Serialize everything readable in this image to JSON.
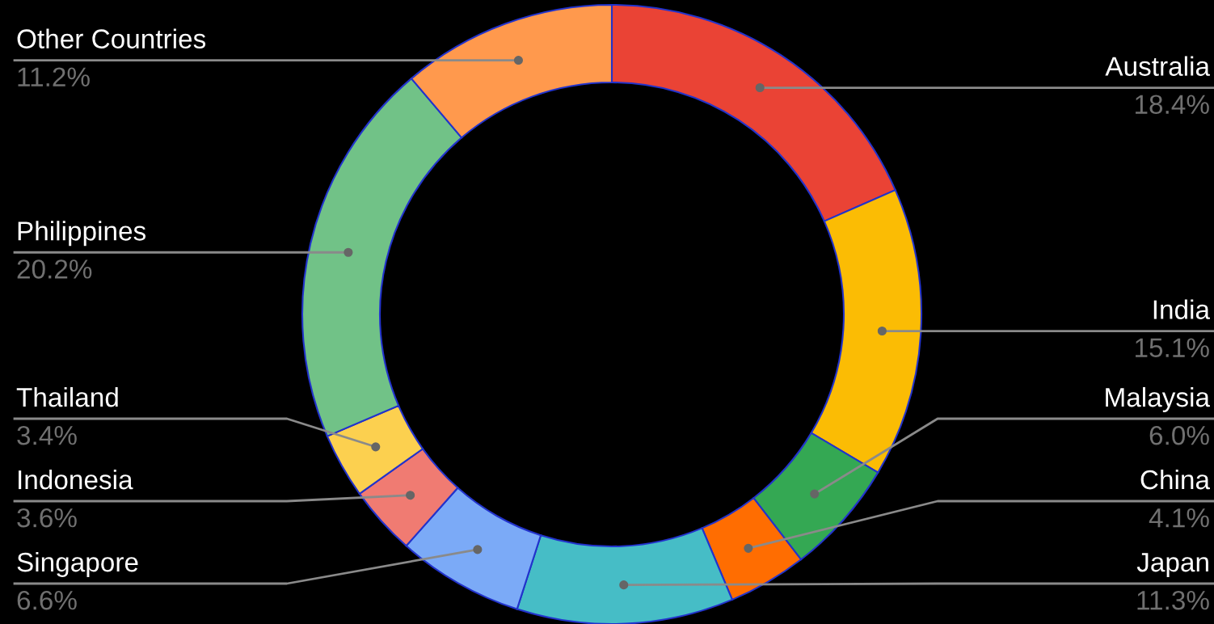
{
  "chart_data": {
    "type": "donut",
    "categories": [
      "Australia",
      "India",
      "Malaysia",
      "China",
      "Japan",
      "Singapore",
      "Indonesia",
      "Thailand",
      "Philippines",
      "Other Countries"
    ],
    "values": [
      18.4,
      15.1,
      6.0,
      4.1,
      11.3,
      6.6,
      3.6,
      3.4,
      20.2,
      11.2
    ],
    "colors": [
      "#ea4335",
      "#fbbc04",
      "#34a853",
      "#ff6d01",
      "#46bdc6",
      "#7baaf7",
      "#f07b72",
      "#fcd04f",
      "#71c287",
      "#ff994d"
    ],
    "value_labels": [
      "18.4%",
      "15.1%",
      "6.0%",
      "4.1%",
      "11.3%",
      "6.6%",
      "3.6%",
      "3.4%",
      "20.2%",
      "11.2%"
    ],
    "legend": false
  }
}
